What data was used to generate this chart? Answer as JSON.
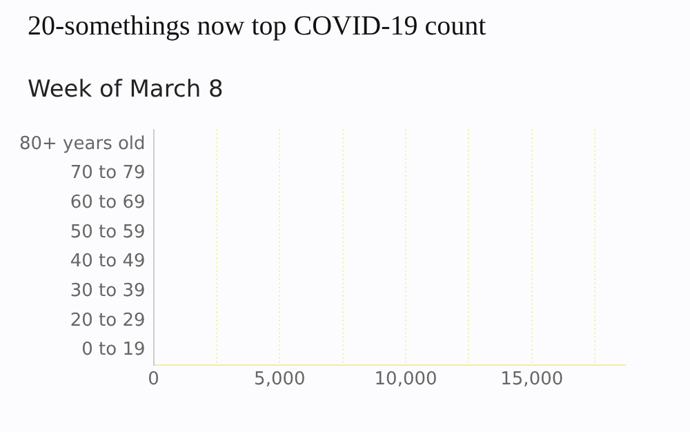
{
  "chart_data": {
    "type": "bar",
    "orientation": "horizontal",
    "title": "20-somethings now top COVID-19 count",
    "subtitle": "Week of March 8",
    "categories": [
      "80+ years old",
      "70 to 79",
      "60 to 69",
      "50 to 59",
      "40 to 49",
      "30 to 39",
      "20 to 29",
      "0 to 19"
    ],
    "values": [
      0,
      0,
      0,
      0,
      0,
      0,
      0,
      0
    ],
    "xlim": [
      0,
      18700
    ],
    "xticks": [
      0,
      {
        "value": 2500,
        "label": null
      },
      "5,000",
      {
        "value": 7500,
        "label": null
      },
      {
        "value": 10000,
        "label": "10,000"
      },
      {
        "value": 12500,
        "label": null
      },
      {
        "value": 15000,
        "label": "15,000"
      },
      {
        "value": 17500,
        "label": null
      }
    ],
    "grid": "x"
  }
}
